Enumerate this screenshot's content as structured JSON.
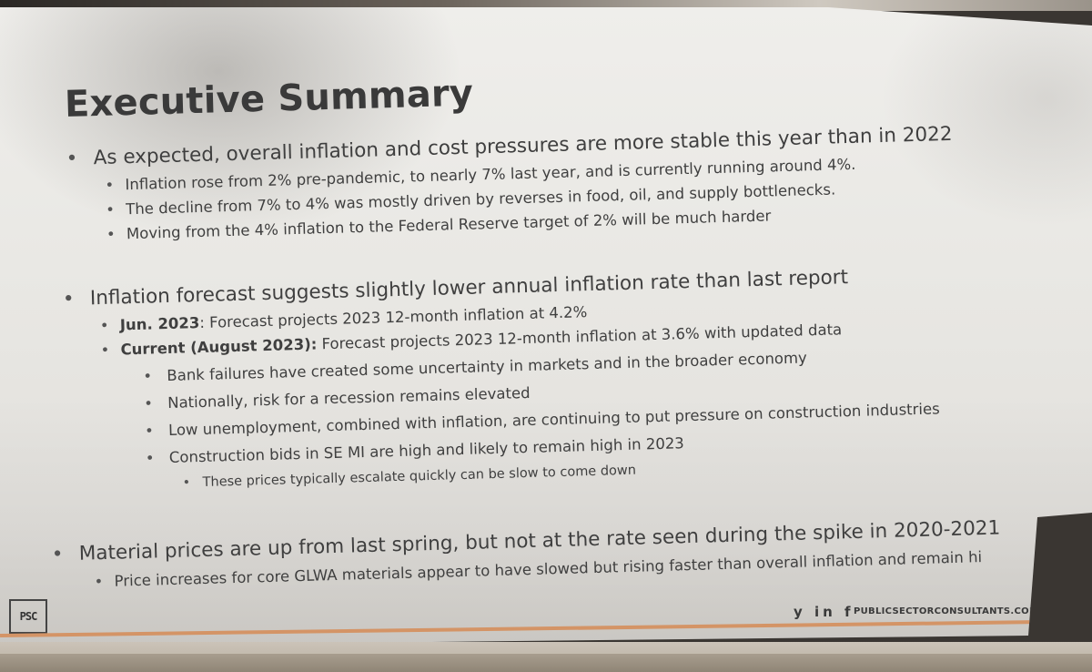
{
  "slide": {
    "title": "Executive Summary",
    "sections": [
      {
        "text": "As expected, overall inflation and cost pressures are more stable this year than in 2022",
        "items": [
          "Inflation rose from 2% pre-pandemic, to nearly 7% last year, and is currently running around 4%.",
          "The decline from 7% to 4% was mostly driven by reverses in food, oil, and supply bottlenecks.",
          "Moving from the 4% inflation to the Federal Reserve target of 2% will be much harder"
        ]
      },
      {
        "text": "Inflation forecast suggests slightly lower annual inflation rate than last report",
        "items": [
          {
            "bold": "Jun. 2023",
            "text": ": Forecast projects 2023 12-month inflation at 4.2%"
          },
          {
            "bold": "Current (August 2023):",
            "text": " Forecast projects 2023 12-month inflation at 3.6% with updated data"
          }
        ],
        "subitems": [
          "Bank failures have created some uncertainty in markets and in the broader economy",
          "Nationally, risk for a recession remains elevated",
          "Low unemployment, combined with inflation, are continuing to put pressure on construction industries",
          "Construction bids in SE MI are high and likely to remain high in 2023"
        ],
        "subsubitems": [
          "These prices typically escalate quickly can be slow to come down"
        ]
      },
      {
        "text": "Material prices are up from last spring, but not at the rate seen during the spike in 2020-2021",
        "items": [
          "Price increases for core GLWA materials appear to have slowed but rising faster than overall inflation and remain hi"
        ]
      }
    ]
  },
  "footer": {
    "social": "y in f",
    "website": "PUBLICSECTORCONSULTANTS.COM",
    "logo_text": "PSC"
  },
  "colors": {
    "accent_line": "#d49466",
    "text": "#3d3d3d"
  }
}
